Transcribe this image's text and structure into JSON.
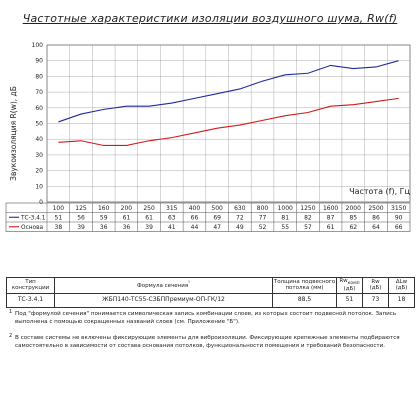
{
  "chart_data": {
    "type": "line",
    "title": "Частотные характеристики изоляции воздушного шума, Rw(f)",
    "ylabel": "Звукоизоляция R(w), дБ",
    "xlabel": "Частота (f), Гц",
    "ylim": [
      0,
      100
    ],
    "yticks": [
      "0",
      "10",
      "20",
      "30",
      "40",
      "50",
      "60",
      "70",
      "80",
      "90",
      "100"
    ],
    "grid": true,
    "legend_position": "table-left",
    "categories": [
      "100",
      "125",
      "160",
      "200",
      "250",
      "315",
      "400",
      "500",
      "630",
      "800",
      "1000",
      "1250",
      "1600",
      "2000",
      "2500",
      "3150"
    ],
    "series": [
      {
        "name": "ТС-3.4.1",
        "color": "#1f2a9a",
        "values": [
          51,
          56,
          59,
          61,
          61,
          63,
          66,
          69,
          72,
          77,
          81,
          82,
          87,
          85,
          86,
          90
        ]
      },
      {
        "name": "Основа",
        "color": "#d21a1a",
        "values": [
          38,
          39,
          36,
          36,
          39,
          41,
          44,
          47,
          49,
          52,
          55,
          57,
          61,
          62,
          64,
          66
        ]
      }
    ]
  },
  "table": {
    "headers": [
      "Тип конструкции",
      "Формула сечения",
      "Толщина подвесного потолка (мм)",
      "Rw",
      "Rw",
      "ΔLw"
    ],
    "header_subs": [
      "",
      "¹",
      "",
      "(дБ)",
      "(дБ)",
      "(дБ)"
    ],
    "header_rw_subs": [
      "комп",
      ""
    ],
    "row": [
      "ТС-3.4.1",
      "ЖБП140-ТС55-СЗБППремиум-ОП-ГК/12",
      "88,5",
      "51",
      "73",
      "18"
    ]
  },
  "notes": [
    {
      "num": "1",
      "text": "Под \"формулой сечения\" понимается символическая запись комбинации слоев, из которых состоит подвесной потолок. Запись выполнена с помощью сокращенных названий слоев (см. Приложение \"Б\")."
    },
    {
      "num": "2",
      "text": "В составе системы не включены фиксирующие элементы для виброизоляции. Фиксирующие крепежные элементы подбираются самостоятельно в зависимости от состава основания потолков, функциональности помещения и требований безопасности."
    }
  ]
}
